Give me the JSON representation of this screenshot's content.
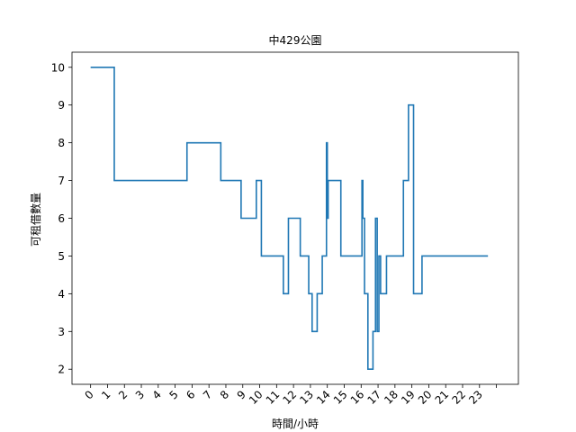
{
  "chart_data": {
    "type": "line",
    "title": "中429公園",
    "xlabel": "時間/小時",
    "ylabel": "可租借數量",
    "xlim": [
      -1.1,
      25.3
    ],
    "ylim": [
      1.6,
      10.4
    ],
    "x_ticks": [
      0,
      1,
      2,
      3,
      4,
      5,
      6,
      7,
      8,
      9,
      10,
      11,
      12,
      13,
      14,
      15,
      16,
      17,
      18,
      19,
      20,
      21,
      22,
      23
    ],
    "x_tick_labels": [
      "0",
      "1",
      "2",
      "3",
      "4",
      "5",
      "6",
      "7",
      "8",
      "9",
      "10",
      "11",
      "12",
      "13",
      "14",
      "15",
      "16",
      "17",
      "18",
      "19",
      "20",
      "21",
      "22",
      "23"
    ],
    "y_ticks": [
      2,
      3,
      4,
      5,
      6,
      7,
      8,
      9,
      10
    ],
    "y_tick_labels": [
      "2",
      "3",
      "4",
      "5",
      "6",
      "7",
      "8",
      "9",
      "10"
    ],
    "grid": false,
    "series": [
      {
        "color": "#1f77b4",
        "step": "post",
        "x": [
          0,
          1.4,
          5.7,
          7.7,
          8.9,
          9.8,
          10.1,
          11.4,
          11.7,
          12.4,
          12.9,
          13.1,
          13.4,
          13.7,
          13.95,
          14.0,
          14.05,
          14.2,
          14.8,
          16.05,
          16.1,
          16.2,
          16.4,
          16.7,
          16.85,
          16.95,
          17.05,
          17.15,
          17.5,
          18.5,
          18.8,
          19.1,
          19.6,
          23.5
        ],
        "y": [
          10,
          7,
          8,
          7,
          6,
          7,
          5,
          4,
          6,
          5,
          4,
          3,
          4,
          5,
          8,
          6,
          7,
          7,
          5,
          7,
          6,
          4,
          2,
          3,
          6,
          3,
          5,
          4,
          5,
          7,
          9,
          4,
          5,
          5
        ]
      }
    ]
  }
}
